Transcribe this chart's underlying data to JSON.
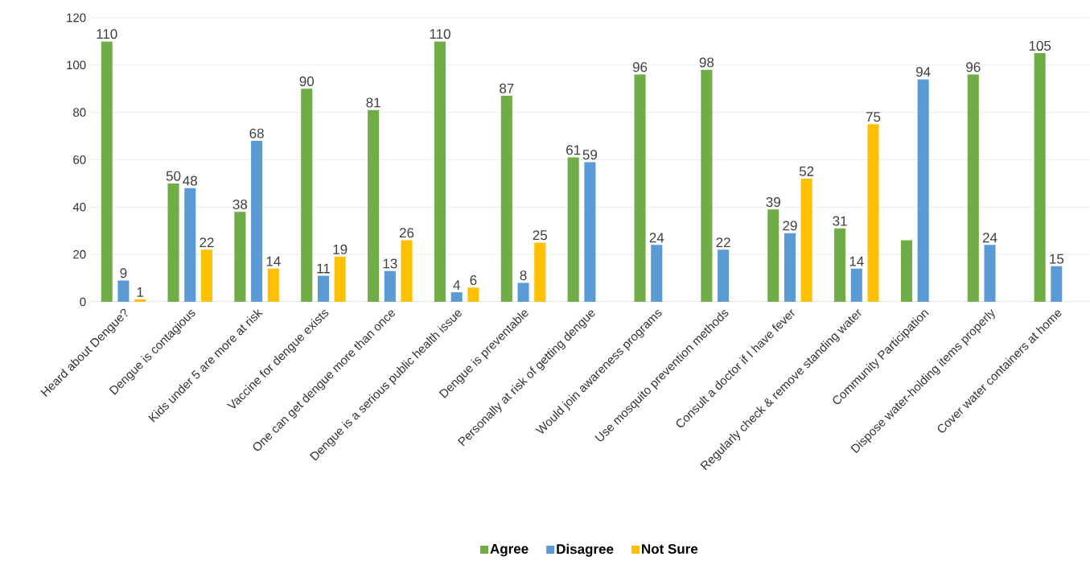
{
  "chart_data": {
    "type": "bar",
    "categories": [
      "Heard about Dengue?",
      "Dengue is contagious",
      "Kids under 5 are more at risk",
      "Vaccine for dengue exists",
      "One can get dengue more than once",
      "Dengue is a serious public health issue",
      "Dengue is preventable",
      "Personally at risk of getting dengue",
      "Would join awareness programs",
      "Use mosquito prevention methods",
      "Consult a doctor if I have fever",
      "Regularly check & remove standing water",
      "Community Participation",
      "Dispose water-holding items properly",
      "Cover water containers at home"
    ],
    "series": [
      {
        "name": "Agree",
        "color": "#70ad47",
        "values": [
          110,
          50,
          38,
          90,
          81,
          110,
          87,
          61,
          96,
          98,
          39,
          31,
          26,
          96,
          105
        ],
        "value_labels": [
          "110",
          "50",
          "38",
          "90",
          "81",
          "110",
          "87",
          "61",
          "96",
          "98",
          "39",
          "31",
          null,
          "96",
          "105"
        ]
      },
      {
        "name": "Disagree",
        "color": "#5b9bd5",
        "values": [
          9,
          48,
          68,
          11,
          13,
          4,
          8,
          59,
          24,
          22,
          29,
          14,
          94,
          24,
          15
        ],
        "value_labels": [
          "9",
          "48",
          "68",
          "11",
          "13",
          "4",
          "8",
          "59",
          "24",
          "22",
          "29",
          "14",
          "94",
          "24",
          "15"
        ]
      },
      {
        "name": "Not Sure",
        "color": "#ffc000",
        "values": [
          1,
          22,
          14,
          19,
          26,
          6,
          25,
          null,
          null,
          null,
          52,
          75,
          null,
          null,
          null
        ],
        "value_labels": [
          "1",
          "22",
          "14",
          "19",
          "26",
          "6",
          "25",
          null,
          null,
          null,
          "52",
          "75",
          null,
          null,
          null
        ]
      }
    ],
    "ylim": [
      0,
      120
    ],
    "yticks": [
      0,
      20,
      40,
      60,
      80,
      100,
      120
    ],
    "grid": "y",
    "legend": "bottom"
  }
}
